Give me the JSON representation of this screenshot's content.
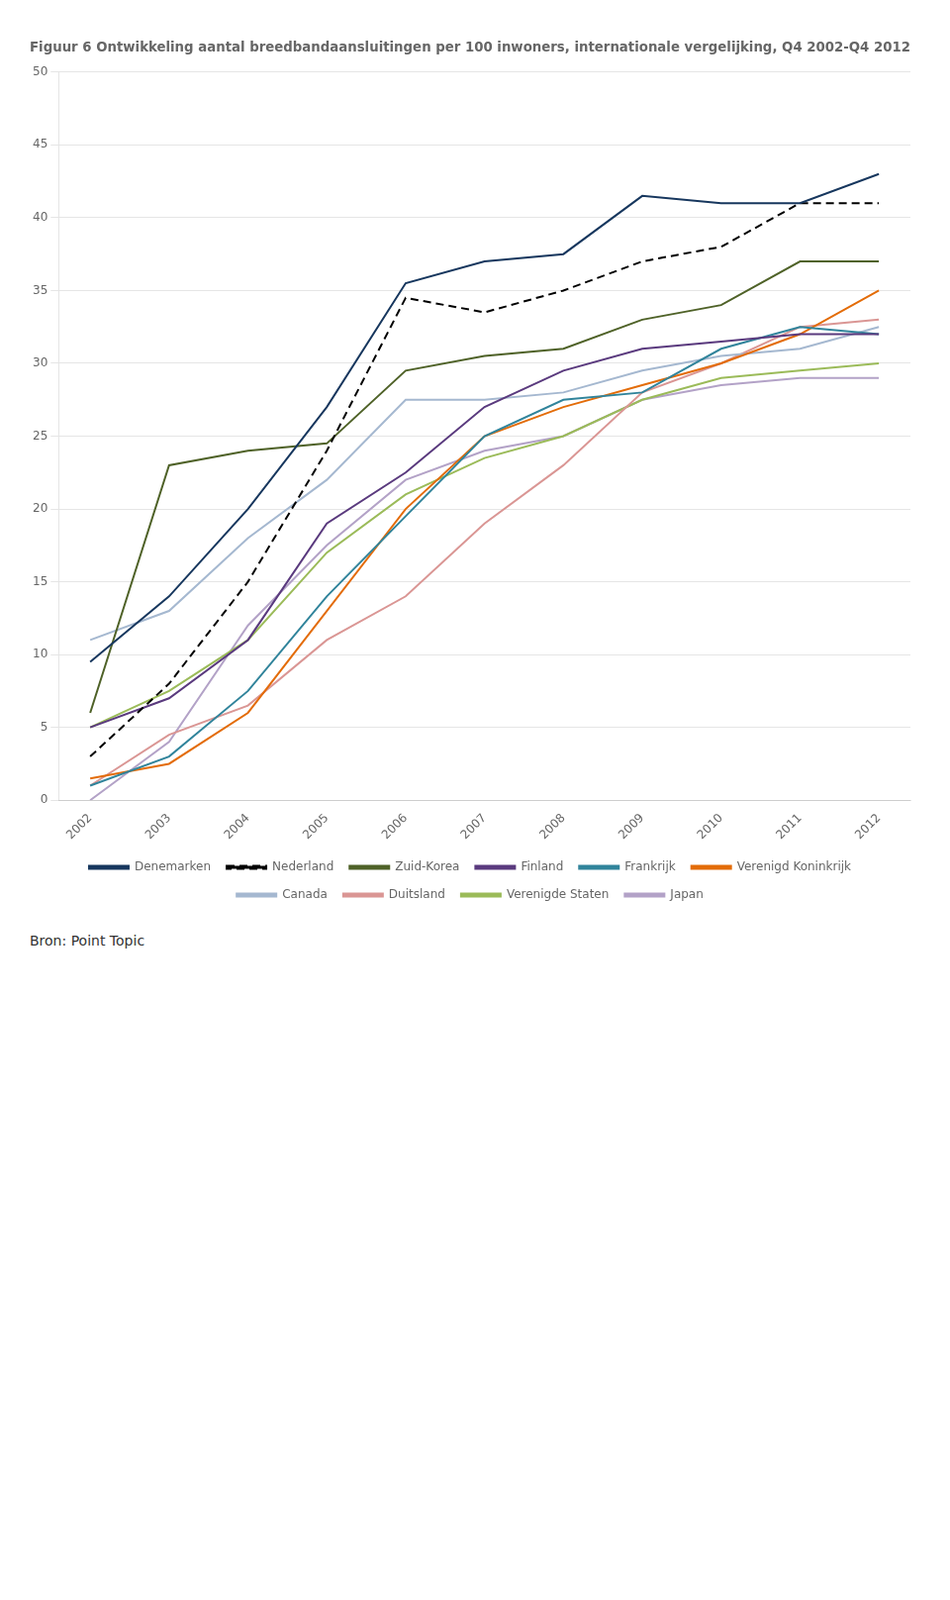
{
  "chart_data": {
    "type": "line",
    "title": "Figuur 6 Ontwikkeling aantal breedbandaansluitingen per 100 inwoners, internationale vergelijking, Q4 2002-Q4 2012",
    "annotations": [
      "Bron: Point Topic"
    ],
    "x": [
      2002,
      2003,
      2004,
      2005,
      2006,
      2007,
      2008,
      2009,
      2010,
      2011,
      2012
    ],
    "xlim": [
      2001.6,
      2012.4
    ],
    "xticks": [
      2002,
      2003,
      2004,
      2005,
      2006,
      2007,
      2008,
      2009,
      2010,
      2011,
      2012
    ],
    "ylim": [
      0,
      50
    ],
    "yticks": [
      0,
      5,
      10,
      15,
      20,
      25,
      30,
      35,
      40,
      45,
      50
    ],
    "grid": true,
    "legend": "bottom",
    "series": [
      {
        "name": "Denemarken",
        "color": "#17375e",
        "line_style": "solid",
        "values": [
          9.5,
          14.0,
          20.0,
          27.0,
          35.5,
          37.0,
          37.5,
          41.5,
          41.0,
          41.0,
          43.0
        ]
      },
      {
        "name": "Nederland",
        "color": "#000000",
        "line_style": "dashed",
        "values": [
          3.0,
          8.0,
          15.0,
          24.0,
          34.5,
          33.5,
          35.0,
          37.0,
          38.0,
          41.0,
          41.0
        ]
      },
      {
        "name": "Zuid-Korea",
        "color": "#4f6228",
        "line_style": "solid",
        "values": [
          6.0,
          23.0,
          24.0,
          24.5,
          29.5,
          30.5,
          31.0,
          33.0,
          34.0,
          37.0,
          37.0
        ]
      },
      {
        "name": "Finland",
        "color": "#5a3a7e",
        "line_style": "solid",
        "values": [
          5.0,
          7.0,
          11.0,
          19.0,
          22.5,
          27.0,
          29.5,
          31.0,
          31.5,
          32.0,
          32.0
        ]
      },
      {
        "name": "Frankrijk",
        "color": "#31849b",
        "line_style": "solid",
        "values": [
          1.0,
          3.0,
          7.5,
          14.0,
          19.5,
          25.0,
          27.5,
          28.0,
          31.0,
          32.5,
          32.0
        ]
      },
      {
        "name": "Verenigd Koninkrijk",
        "color": "#e36c09",
        "line_style": "solid",
        "values": [
          1.5,
          2.5,
          6.0,
          13.0,
          20.0,
          25.0,
          27.0,
          28.5,
          30.0,
          32.0,
          35.0
        ]
      },
      {
        "name": "Canada",
        "color": "#a5b8d0",
        "line_style": "solid",
        "values": [
          11.0,
          13.0,
          18.0,
          22.0,
          27.5,
          27.5,
          28.0,
          29.5,
          30.5,
          31.0,
          32.5
        ]
      },
      {
        "name": "Duitsland",
        "color": "#da9694",
        "line_style": "solid",
        "values": [
          1.0,
          4.5,
          6.5,
          11.0,
          14.0,
          19.0,
          23.0,
          28.0,
          30.0,
          32.5,
          33.0
        ]
      },
      {
        "name": "Verenigde Staten",
        "color": "#9bbb59",
        "line_style": "solid",
        "values": [
          5.0,
          7.5,
          11.0,
          17.0,
          21.0,
          23.5,
          25.0,
          27.5,
          29.0,
          29.5,
          30.0
        ]
      },
      {
        "name": "Japan",
        "color": "#b3a2c7",
        "line_style": "solid",
        "values": [
          0.0,
          4.0,
          12.0,
          17.5,
          22.0,
          24.0,
          25.0,
          27.5,
          28.5,
          29.0,
          29.0
        ]
      }
    ]
  }
}
